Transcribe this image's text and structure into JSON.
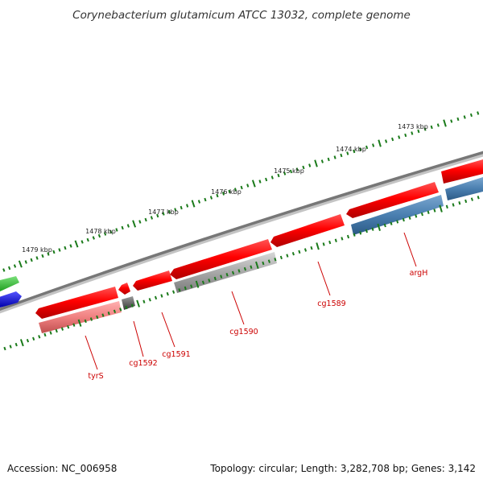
{
  "title": "Corynebacterium glutamicum ATCC 13032, complete genome",
  "footer": {
    "accession": "Accession: NC_006958",
    "summary": "Topology: circular; Length: 3,282,708 bp; Genes: 3,142"
  },
  "scale_labels": [
    "1473 kbp",
    "1474 kbp",
    "1475 kbp",
    "1476 kbp",
    "1477 kbp",
    "1478 kbp",
    "1479 kbp"
  ],
  "gene_labels": [
    "argH",
    "cg1589",
    "cg1590",
    "cg1591",
    "cg1592",
    "tyrS"
  ],
  "colors": {
    "backbone": "#7a7a7a",
    "forward_gene": "#ff0000",
    "reverse_gene": "#4a7fb0",
    "gray_gene": "#a0a0a0",
    "pink_gene": "#f08080",
    "green_gene": "#33cc33",
    "blue_gene": "#0000ee",
    "tick": "#1a7a1a",
    "label": "#cc0000"
  }
}
